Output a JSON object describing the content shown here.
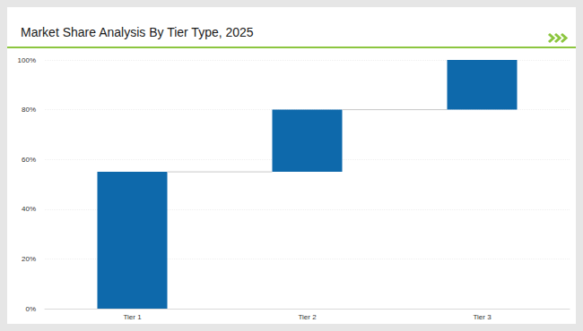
{
  "chart_data": {
    "type": "waterfall",
    "title": "Market Share Analysis By Tier Type, 2025",
    "categories": [
      "Tier 1",
      "Tier 2",
      "Tier 3"
    ],
    "values": [
      55,
      25,
      20
    ],
    "color": "#0e69ab",
    "ylim": [
      0,
      100
    ],
    "yticks": [
      {
        "value": 0,
        "label": "0%"
      },
      {
        "value": 20,
        "label": "20%"
      },
      {
        "value": 40,
        "label": "40%"
      },
      {
        "value": 60,
        "label": "60%"
      },
      {
        "value": 80,
        "label": "80%"
      },
      {
        "value": 100,
        "label": "100%"
      }
    ],
    "grid": true
  }
}
